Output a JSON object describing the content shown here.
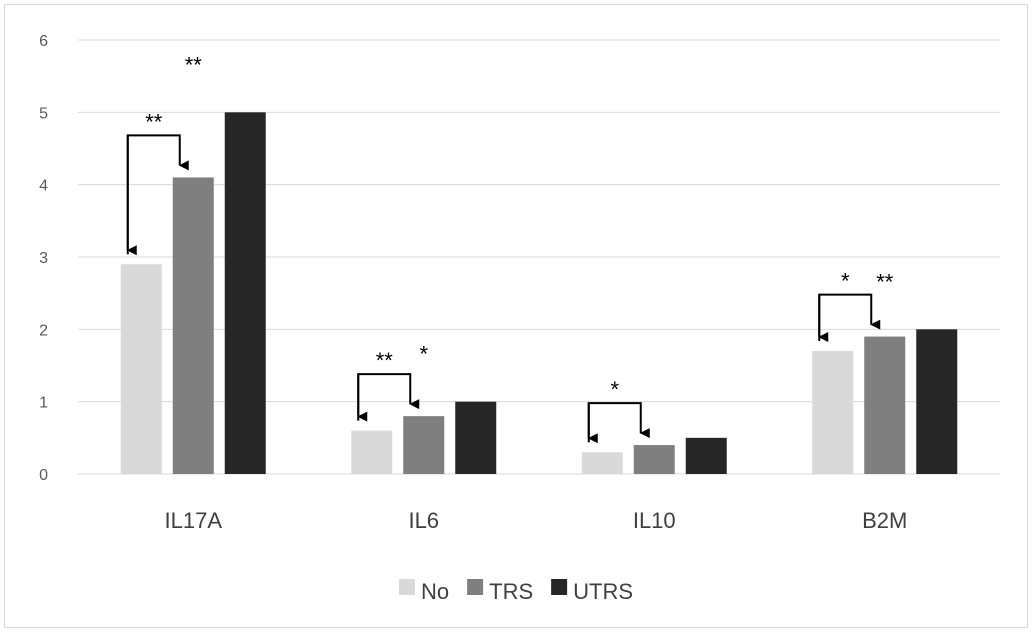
{
  "chart_data": {
    "type": "bar",
    "categories": [
      "IL17A",
      "IL6",
      "IL10",
      "B2M"
    ],
    "series": [
      {
        "name": "No",
        "values": [
          2.9,
          0.6,
          0.3,
          1.7
        ],
        "color": "#d9d9d9"
      },
      {
        "name": "TRS",
        "values": [
          4.1,
          0.8,
          0.4,
          1.9
        ],
        "color": "#7f7f7f"
      },
      {
        "name": "UTRS",
        "values": [
          5.0,
          1.0,
          0.5,
          2.0
        ],
        "color": "#262626"
      }
    ],
    "ylim": [
      0,
      6
    ],
    "yticks": [
      0,
      1,
      2,
      3,
      4,
      5,
      6
    ],
    "grid": true,
    "legend_position": "bottom",
    "annotations": [
      {
        "category": "IL17A",
        "comparison": "No vs TRS",
        "label": "**"
      },
      {
        "category": "IL17A",
        "comparison": "No vs UTRS",
        "label": "**"
      },
      {
        "category": "IL6",
        "comparison": "No vs TRS",
        "label": "**"
      },
      {
        "category": "IL6",
        "comparison": "No vs UTRS",
        "label": "*"
      },
      {
        "category": "IL10",
        "comparison": "No vs TRS",
        "label": "*"
      },
      {
        "category": "B2M",
        "comparison": "No vs TRS",
        "label": "*"
      },
      {
        "category": "B2M",
        "comparison": "No vs UTRS",
        "label": "**"
      }
    ]
  }
}
